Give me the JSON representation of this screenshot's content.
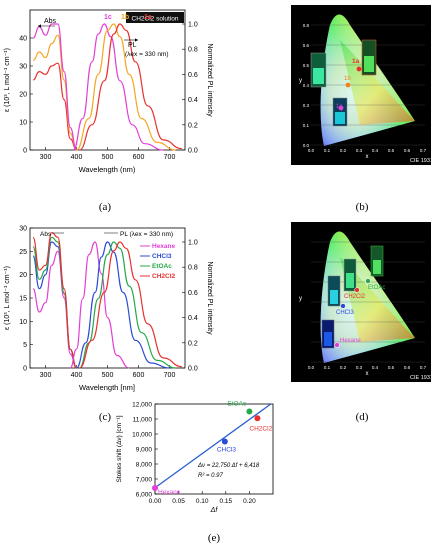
{
  "colors": {
    "c1a": "#e8312f",
    "c1b": "#f5a623",
    "c1c": "#e23fd6",
    "hexane": "#e23fd6",
    "chcl3": "#2b4bd6",
    "etoac": "#27a84a",
    "ch2cl2": "#e8312f",
    "fit": "#2a5fd0"
  },
  "panel_a": {
    "caption": "(a)",
    "badge": "CH2Cl2 solution",
    "abs_label": "Abs",
    "pl_label": "PL",
    "pl_exc": "(λex = 330 nm)",
    "ylabel": "ε (10³, L mol⁻¹ cm⁻¹)",
    "ylabel_right": "Normalized PL intensity",
    "xlabel": "Wavelength (nm)",
    "series_labels": [
      "1c",
      "1b",
      "1a"
    ]
  },
  "panel_b": {
    "caption": "(b)",
    "cie": "CIE 1931",
    "xlabel": "x",
    "ylabel": "y",
    "labels": [
      "1a",
      "1b",
      "1c"
    ]
  },
  "panel_c": {
    "caption": "(c)",
    "abs_label": "Abs",
    "pl_label": "PL (λex = 330 nm)",
    "ylabel": "ε (10³, L mol⁻¹ cm⁻¹)",
    "ylabel_right": "Normalized PL intensity",
    "xlabel": "Wavelength [nm]",
    "legend": [
      "Hexane",
      "CHCl3",
      "EtOAc",
      "CH2Cl2"
    ]
  },
  "panel_d": {
    "caption": "(d)",
    "cie": "CIE 1931",
    "xlabel": "x",
    "ylabel": "y",
    "labels": [
      "EtOAc",
      "CH2Cl2",
      "CHCl3",
      "Hexane"
    ]
  },
  "panel_e": {
    "caption": "(e)",
    "ylabel": "Stokes shift (Δν) [cm⁻¹]",
    "xlabel": "Δf",
    "equation": "Δν = 22,750 Δf + 6,418",
    "r2": "R² = 0.97"
  },
  "chart_data": [
    {
      "type": "line",
      "panel": "a",
      "xlabel": "Wavelength (nm)",
      "ylabel": "ε (10³, L mol⁻¹ cm⁻¹)",
      "xlim": [
        250,
        750
      ],
      "ylim": [
        0,
        50
      ],
      "xticks": [
        300,
        400,
        500,
        600,
        700
      ],
      "yticks": [
        0,
        10,
        20,
        30,
        40
      ],
      "y2ticks": [
        "0.0",
        "0.2",
        "0.4",
        "0.6",
        "0.8",
        "1.0"
      ],
      "series": [
        {
          "name": "1a",
          "kind": "abs",
          "x": [
            260,
            280,
            300,
            320,
            340,
            360,
            380,
            400
          ],
          "y": [
            25,
            28,
            27,
            30,
            31,
            18,
            4,
            0
          ]
        },
        {
          "name": "1b",
          "kind": "abs",
          "x": [
            260,
            280,
            300,
            320,
            340,
            360,
            380,
            400
          ],
          "y": [
            32,
            35,
            33,
            38,
            41,
            25,
            6,
            0
          ]
        },
        {
          "name": "1c",
          "kind": "abs",
          "x": [
            260,
            280,
            300,
            320,
            340,
            360,
            380,
            400
          ],
          "y": [
            40,
            44,
            41,
            45,
            45,
            28,
            8,
            0
          ]
        },
        {
          "name": "1c",
          "kind": "pl",
          "x": [
            390,
            420,
            450,
            470,
            490,
            510,
            540,
            580,
            620,
            680
          ],
          "y": [
            0,
            0.25,
            0.7,
            0.92,
            1.0,
            0.9,
            0.55,
            0.2,
            0.05,
            0
          ]
        },
        {
          "name": "1b",
          "kind": "pl",
          "x": [
            400,
            440,
            470,
            500,
            520,
            540,
            570,
            610,
            660,
            720
          ],
          "y": [
            0,
            0.25,
            0.6,
            0.95,
            1.0,
            0.9,
            0.6,
            0.25,
            0.06,
            0
          ]
        },
        {
          "name": "1a",
          "kind": "pl",
          "x": [
            410,
            450,
            490,
            520,
            540,
            560,
            590,
            630,
            680,
            740
          ],
          "y": [
            0,
            0.2,
            0.55,
            0.92,
            1.0,
            0.95,
            0.7,
            0.35,
            0.08,
            0.01
          ]
        }
      ]
    },
    {
      "type": "line",
      "panel": "c",
      "xlabel": "Wavelength [nm]",
      "ylabel": "ε (10³, L mol⁻¹ cm⁻¹)",
      "xlim": [
        250,
        750
      ],
      "ylim": [
        0,
        30
      ],
      "xticks": [
        300,
        400,
        500,
        600,
        700
      ],
      "yticks": [
        0,
        5,
        10,
        15,
        20,
        25,
        30
      ],
      "y2ticks": [
        "0.0",
        "0.2",
        "0.4",
        "0.6",
        "0.8",
        "1.0"
      ],
      "series": [
        {
          "name": "Hexane",
          "kind": "abs",
          "x": [
            260,
            280,
            300,
            320,
            340,
            360,
            380,
            400
          ],
          "y": [
            17,
            12,
            14,
            22,
            25,
            15,
            3,
            0
          ]
        },
        {
          "name": "CHCl3",
          "kind": "abs",
          "x": [
            260,
            280,
            300,
            320,
            340,
            360,
            380,
            400
          ],
          "y": [
            24,
            17,
            20,
            27,
            26,
            16,
            4,
            0
          ]
        },
        {
          "name": "EtOAc",
          "kind": "abs",
          "x": [
            260,
            280,
            300,
            320,
            340,
            360,
            380,
            400
          ],
          "y": [
            26,
            19,
            21,
            28,
            27,
            16,
            4,
            0
          ]
        },
        {
          "name": "CH2Cl2",
          "kind": "abs",
          "x": [
            260,
            280,
            300,
            320,
            340,
            360,
            380,
            400
          ],
          "y": [
            28,
            21,
            22,
            29,
            28,
            17,
            4,
            0
          ]
        },
        {
          "name": "Hexane",
          "kind": "pl",
          "x": [
            380,
            400,
            420,
            440,
            460,
            480,
            500,
            530,
            570
          ],
          "y": [
            0,
            0.15,
            0.55,
            0.9,
            1.0,
            0.75,
            0.4,
            0.1,
            0
          ]
        },
        {
          "name": "CHCl3",
          "kind": "pl",
          "x": [
            400,
            430,
            460,
            480,
            500,
            520,
            550,
            590,
            640,
            700
          ],
          "y": [
            0,
            0.2,
            0.6,
            0.88,
            1.0,
            0.92,
            0.6,
            0.22,
            0.04,
            0
          ]
        },
        {
          "name": "EtOAc",
          "kind": "pl",
          "x": [
            410,
            440,
            470,
            500,
            520,
            540,
            570,
            610,
            660,
            720
          ],
          "y": [
            0,
            0.2,
            0.55,
            0.9,
            1.0,
            0.95,
            0.65,
            0.28,
            0.06,
            0
          ]
        },
        {
          "name": "CH2Cl2",
          "kind": "pl",
          "x": [
            410,
            450,
            490,
            520,
            540,
            560,
            590,
            630,
            680,
            740
          ],
          "y": [
            0,
            0.22,
            0.6,
            0.93,
            1.0,
            0.95,
            0.7,
            0.35,
            0.08,
            0.01
          ]
        }
      ]
    },
    {
      "type": "scatter",
      "panel": "e",
      "xlabel": "Δf",
      "ylabel": "Stokes shift (Δν) [cm⁻¹]",
      "xlim": [
        0,
        0.25
      ],
      "ylim": [
        6000,
        12000
      ],
      "xticks": [
        "0.00",
        "0.05",
        "0.10",
        "0.15",
        "0.20"
      ],
      "yticks": [
        "6,000",
        "7,000",
        "8,000",
        "9,000",
        "10,000",
        "11,000",
        "12,000"
      ],
      "points": [
        {
          "name": "Hexane",
          "x": 0.0,
          "y": 6400
        },
        {
          "name": "CHCl3",
          "x": 0.148,
          "y": 9500
        },
        {
          "name": "EtOAc",
          "x": 0.2,
          "y": 11500
        },
        {
          "name": "CH2Cl2",
          "x": 0.217,
          "y": 11050
        }
      ],
      "fit": {
        "slope": 22750,
        "intercept": 6418
      }
    }
  ]
}
